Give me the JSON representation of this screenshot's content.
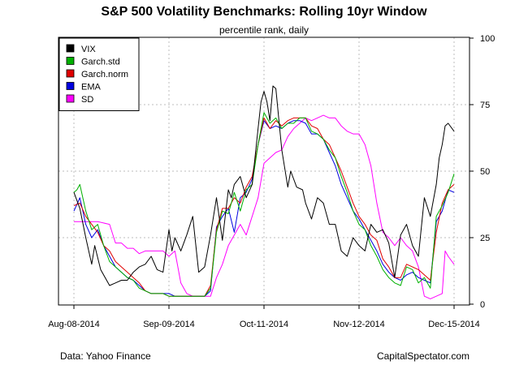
{
  "title": "S&P 500 Volatility Benchmarks: Rolling 10yr Window",
  "subtitle": "percentile rank, daily",
  "footer": {
    "left": "Data: Yahoo Finance",
    "right": "CapitalSpectator.com"
  },
  "chart_data": {
    "type": "line",
    "title": "S&P 500 Volatility Benchmarks: Rolling 10yr Window",
    "subtitle": "percentile rank, daily",
    "xlabel": "",
    "ylabel": "",
    "ylim": [
      0,
      100
    ],
    "y_ticks": [
      0,
      25,
      50,
      75,
      100
    ],
    "y_axis_side": "right",
    "x_ticks": [
      "Aug-08-2014",
      "Sep-09-2014",
      "Oct-11-2014",
      "Nov-12-2014",
      "Dec-15-2014"
    ],
    "x_index_range": [
      0,
      128
    ],
    "x_tick_index": [
      0,
      32,
      64,
      96,
      128
    ],
    "grid": true,
    "legend_position": "top-left",
    "series": [
      {
        "name": "VIX",
        "color": "#000000",
        "points": [
          [
            0,
            42
          ],
          [
            2,
            36
          ],
          [
            4,
            25
          ],
          [
            6,
            15
          ],
          [
            7,
            22
          ],
          [
            9,
            13
          ],
          [
            12,
            7
          ],
          [
            14,
            8
          ],
          [
            16,
            9
          ],
          [
            18,
            9
          ],
          [
            20,
            12
          ],
          [
            22,
            14
          ],
          [
            24,
            15
          ],
          [
            26,
            18
          ],
          [
            28,
            13
          ],
          [
            30,
            12
          ],
          [
            32,
            28
          ],
          [
            33,
            20
          ],
          [
            34,
            25
          ],
          [
            36,
            20
          ],
          [
            38,
            26
          ],
          [
            40,
            33
          ],
          [
            42,
            12
          ],
          [
            44,
            14
          ],
          [
            46,
            26
          ],
          [
            48,
            40
          ],
          [
            50,
            24
          ],
          [
            52,
            43
          ],
          [
            53,
            40
          ],
          [
            54,
            45
          ],
          [
            56,
            48
          ],
          [
            58,
            40
          ],
          [
            60,
            45
          ],
          [
            62,
            66
          ],
          [
            63,
            76
          ],
          [
            64,
            80
          ],
          [
            65,
            76
          ],
          [
            66,
            69
          ],
          [
            67,
            82
          ],
          [
            68,
            81
          ],
          [
            70,
            58
          ],
          [
            72,
            44
          ],
          [
            73,
            50
          ],
          [
            75,
            44
          ],
          [
            77,
            43
          ],
          [
            78,
            38
          ],
          [
            80,
            32
          ],
          [
            82,
            40
          ],
          [
            84,
            38
          ],
          [
            86,
            30
          ],
          [
            88,
            30
          ],
          [
            90,
            20
          ],
          [
            92,
            18
          ],
          [
            94,
            25
          ],
          [
            96,
            22
          ],
          [
            98,
            20
          ],
          [
            100,
            30
          ],
          [
            102,
            27
          ],
          [
            104,
            28
          ],
          [
            106,
            23
          ],
          [
            108,
            10
          ],
          [
            110,
            26
          ],
          [
            112,
            30
          ],
          [
            114,
            22
          ],
          [
            116,
            18
          ],
          [
            118,
            40
          ],
          [
            120,
            33
          ],
          [
            122,
            45
          ],
          [
            123,
            55
          ],
          [
            124,
            60
          ],
          [
            125,
            67
          ],
          [
            126,
            68
          ],
          [
            128,
            65
          ]
        ]
      },
      {
        "name": "Garch.std",
        "color": "#00b000",
        "points": [
          [
            0,
            42
          ],
          [
            1,
            43
          ],
          [
            2,
            45
          ],
          [
            4,
            35
          ],
          [
            6,
            28
          ],
          [
            8,
            30
          ],
          [
            10,
            22
          ],
          [
            12,
            16
          ],
          [
            14,
            14
          ],
          [
            16,
            12
          ],
          [
            18,
            10
          ],
          [
            20,
            9
          ],
          [
            22,
            6
          ],
          [
            24,
            5
          ],
          [
            26,
            4
          ],
          [
            28,
            4
          ],
          [
            30,
            4
          ],
          [
            32,
            3
          ],
          [
            34,
            3
          ],
          [
            36,
            3
          ],
          [
            38,
            3
          ],
          [
            40,
            3
          ],
          [
            42,
            3
          ],
          [
            44,
            3
          ],
          [
            46,
            6
          ],
          [
            48,
            27
          ],
          [
            50,
            35
          ],
          [
            52,
            34
          ],
          [
            54,
            42
          ],
          [
            56,
            35
          ],
          [
            58,
            43
          ],
          [
            60,
            45
          ],
          [
            62,
            60
          ],
          [
            64,
            72
          ],
          [
            66,
            68
          ],
          [
            68,
            70
          ],
          [
            70,
            66
          ],
          [
            72,
            68
          ],
          [
            74,
            68
          ],
          [
            76,
            70
          ],
          [
            78,
            70
          ],
          [
            80,
            65
          ],
          [
            82,
            64
          ],
          [
            84,
            62
          ],
          [
            86,
            58
          ],
          [
            88,
            55
          ],
          [
            90,
            48
          ],
          [
            92,
            42
          ],
          [
            94,
            35
          ],
          [
            96,
            30
          ],
          [
            98,
            28
          ],
          [
            100,
            22
          ],
          [
            102,
            18
          ],
          [
            104,
            13
          ],
          [
            106,
            10
          ],
          [
            108,
            8
          ],
          [
            110,
            7
          ],
          [
            112,
            14
          ],
          [
            114,
            13
          ],
          [
            116,
            8
          ],
          [
            118,
            10
          ],
          [
            120,
            6
          ],
          [
            122,
            33
          ],
          [
            124,
            37
          ],
          [
            126,
            42
          ],
          [
            128,
            49
          ]
        ]
      },
      {
        "name": "Garch.norm",
        "color": "#e00000",
        "points": [
          [
            0,
            37
          ],
          [
            2,
            38
          ],
          [
            4,
            33
          ],
          [
            6,
            30
          ],
          [
            8,
            27
          ],
          [
            10,
            22
          ],
          [
            12,
            20
          ],
          [
            14,
            16
          ],
          [
            16,
            14
          ],
          [
            18,
            12
          ],
          [
            20,
            10
          ],
          [
            22,
            8
          ],
          [
            24,
            5
          ],
          [
            26,
            4
          ],
          [
            28,
            4
          ],
          [
            30,
            4
          ],
          [
            32,
            3
          ],
          [
            34,
            3
          ],
          [
            36,
            3
          ],
          [
            38,
            3
          ],
          [
            40,
            3
          ],
          [
            42,
            3
          ],
          [
            44,
            3
          ],
          [
            46,
            7
          ],
          [
            48,
            28
          ],
          [
            50,
            36
          ],
          [
            52,
            36
          ],
          [
            54,
            40
          ],
          [
            56,
            38
          ],
          [
            58,
            44
          ],
          [
            60,
            48
          ],
          [
            62,
            60
          ],
          [
            64,
            70
          ],
          [
            66,
            66
          ],
          [
            68,
            69
          ],
          [
            70,
            67
          ],
          [
            72,
            69
          ],
          [
            74,
            70
          ],
          [
            76,
            70
          ],
          [
            78,
            70
          ],
          [
            80,
            67
          ],
          [
            82,
            66
          ],
          [
            84,
            62
          ],
          [
            86,
            60
          ],
          [
            88,
            55
          ],
          [
            90,
            50
          ],
          [
            92,
            44
          ],
          [
            94,
            38
          ],
          [
            96,
            33
          ],
          [
            98,
            30
          ],
          [
            100,
            26
          ],
          [
            102,
            24
          ],
          [
            104,
            17
          ],
          [
            106,
            14
          ],
          [
            108,
            10
          ],
          [
            110,
            10
          ],
          [
            112,
            15
          ],
          [
            114,
            14
          ],
          [
            116,
            13
          ],
          [
            118,
            11
          ],
          [
            120,
            9
          ],
          [
            122,
            27
          ],
          [
            124,
            38
          ],
          [
            126,
            43
          ],
          [
            128,
            45
          ]
        ]
      },
      {
        "name": "EMA",
        "color": "#0000e0",
        "points": [
          [
            0,
            35
          ],
          [
            2,
            40
          ],
          [
            4,
            30
          ],
          [
            6,
            25
          ],
          [
            8,
            28
          ],
          [
            10,
            22
          ],
          [
            12,
            18
          ],
          [
            14,
            14
          ],
          [
            16,
            12
          ],
          [
            18,
            10
          ],
          [
            20,
            9
          ],
          [
            22,
            7
          ],
          [
            24,
            5
          ],
          [
            26,
            4
          ],
          [
            28,
            4
          ],
          [
            30,
            4
          ],
          [
            32,
            4
          ],
          [
            34,
            3
          ],
          [
            36,
            3
          ],
          [
            38,
            3
          ],
          [
            40,
            3
          ],
          [
            42,
            3
          ],
          [
            44,
            3
          ],
          [
            46,
            5
          ],
          [
            48,
            29
          ],
          [
            50,
            33
          ],
          [
            52,
            36
          ],
          [
            54,
            27
          ],
          [
            56,
            40
          ],
          [
            58,
            42
          ],
          [
            60,
            47
          ],
          [
            62,
            60
          ],
          [
            64,
            69
          ],
          [
            66,
            66
          ],
          [
            68,
            67
          ],
          [
            70,
            66
          ],
          [
            72,
            68
          ],
          [
            74,
            69
          ],
          [
            76,
            69
          ],
          [
            78,
            68
          ],
          [
            80,
            64
          ],
          [
            82,
            64
          ],
          [
            84,
            62
          ],
          [
            86,
            57
          ],
          [
            88,
            52
          ],
          [
            90,
            45
          ],
          [
            92,
            40
          ],
          [
            94,
            35
          ],
          [
            96,
            32
          ],
          [
            98,
            28
          ],
          [
            100,
            24
          ],
          [
            102,
            20
          ],
          [
            104,
            15
          ],
          [
            106,
            12
          ],
          [
            108,
            10
          ],
          [
            110,
            9
          ],
          [
            112,
            11
          ],
          [
            114,
            12
          ],
          [
            116,
            10
          ],
          [
            118,
            9
          ],
          [
            120,
            8
          ],
          [
            122,
            31
          ],
          [
            124,
            35
          ],
          [
            126,
            43
          ],
          [
            128,
            42
          ]
        ]
      },
      {
        "name": "SD",
        "color": "#ff00ff",
        "points": [
          [
            0,
            31
          ],
          [
            4,
            31
          ],
          [
            8,
            31
          ],
          [
            12,
            30
          ],
          [
            14,
            23
          ],
          [
            16,
            23
          ],
          [
            18,
            21
          ],
          [
            20,
            21
          ],
          [
            22,
            19
          ],
          [
            24,
            20
          ],
          [
            26,
            20
          ],
          [
            28,
            20
          ],
          [
            30,
            20
          ],
          [
            32,
            18
          ],
          [
            34,
            20
          ],
          [
            36,
            8
          ],
          [
            38,
            4
          ],
          [
            40,
            3
          ],
          [
            42,
            3
          ],
          [
            44,
            3
          ],
          [
            46,
            3
          ],
          [
            48,
            10
          ],
          [
            50,
            15
          ],
          [
            52,
            22
          ],
          [
            54,
            26
          ],
          [
            56,
            30
          ],
          [
            58,
            26
          ],
          [
            60,
            33
          ],
          [
            62,
            40
          ],
          [
            64,
            53
          ],
          [
            66,
            55
          ],
          [
            68,
            57
          ],
          [
            70,
            58
          ],
          [
            72,
            63
          ],
          [
            74,
            66
          ],
          [
            76,
            68
          ],
          [
            78,
            70
          ],
          [
            80,
            69
          ],
          [
            82,
            70
          ],
          [
            84,
            71
          ],
          [
            86,
            70
          ],
          [
            88,
            70
          ],
          [
            90,
            67
          ],
          [
            92,
            65
          ],
          [
            94,
            64
          ],
          [
            96,
            64
          ],
          [
            98,
            60
          ],
          [
            100,
            52
          ],
          [
            102,
            38
          ],
          [
            104,
            27
          ],
          [
            106,
            25
          ],
          [
            108,
            22
          ],
          [
            110,
            25
          ],
          [
            112,
            22
          ],
          [
            114,
            20
          ],
          [
            116,
            14
          ],
          [
            118,
            3
          ],
          [
            120,
            2
          ],
          [
            122,
            3
          ],
          [
            124,
            4
          ],
          [
            125,
            20
          ],
          [
            126,
            18
          ],
          [
            128,
            15
          ]
        ]
      }
    ]
  }
}
